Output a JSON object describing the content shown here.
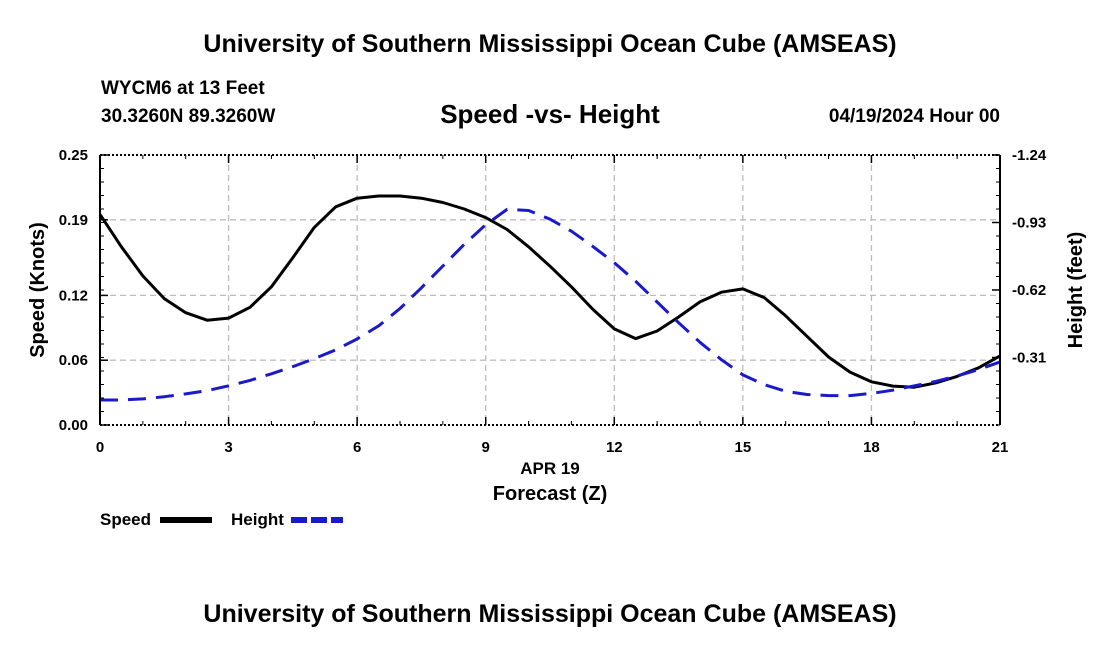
{
  "header": {
    "title": "University of Southern Mississippi Ocean Cube (AMSEAS)",
    "station": "WYCM6 at 13 Feet",
    "coords": "30.3260N  89.3260W",
    "subtitle": "Speed -vs- Height",
    "datetime": "04/19/2024 Hour 00"
  },
  "footer": {
    "title": "University of Southern Mississippi Ocean Cube (AMSEAS)"
  },
  "chart_data": {
    "type": "line",
    "title": "Speed -vs- Height",
    "xlabel": "Forecast (Z)",
    "xsublabel": "APR 19",
    "ylabel": "Speed (Knots)",
    "y2label": "Height (feet)",
    "xlim": [
      0,
      21
    ],
    "ylim": [
      0.0,
      0.25
    ],
    "y2lim": [
      -1.24,
      0.0
    ],
    "x_ticks": [
      0,
      3,
      6,
      9,
      12,
      15,
      18,
      21
    ],
    "x_tick_labels": [
      "0",
      "3",
      "6",
      "9",
      "12",
      "15",
      "18",
      "21"
    ],
    "y_ticks": [
      0.0,
      0.06,
      0.12,
      0.19,
      0.25
    ],
    "y_tick_labels": [
      "0.00",
      "0.06",
      "0.12",
      "0.19",
      "0.25"
    ],
    "y2_ticks": [
      -0.31,
      -0.62,
      -0.93,
      -1.24
    ],
    "y2_tick_labels": [
      "-0.31",
      "-0.62",
      "-0.93",
      "-1.24"
    ],
    "grid": true,
    "series": [
      {
        "name": "Speed",
        "axis": "left",
        "color": "#000000",
        "dash": "solid",
        "x": [
          0,
          0.5,
          1,
          1.5,
          2,
          2.5,
          3,
          3.5,
          4,
          4.5,
          5,
          5.5,
          6,
          6.5,
          7,
          7.5,
          8,
          8.5,
          9,
          9.5,
          10,
          10.5,
          11,
          11.5,
          12,
          12.5,
          13,
          13.5,
          14,
          14.5,
          15,
          15.5,
          16,
          16.5,
          17,
          17.5,
          18,
          18.5,
          19,
          19.5,
          20,
          20.5,
          21
        ],
        "values": [
          0.195,
          0.165,
          0.138,
          0.117,
          0.104,
          0.097,
          0.099,
          0.109,
          0.128,
          0.155,
          0.183,
          0.202,
          0.21,
          0.212,
          0.212,
          0.21,
          0.206,
          0.2,
          0.192,
          0.181,
          0.165,
          0.147,
          0.128,
          0.107,
          0.089,
          0.08,
          0.087,
          0.1,
          0.114,
          0.123,
          0.126,
          0.118,
          0.101,
          0.082,
          0.063,
          0.049,
          0.04,
          0.036,
          0.035,
          0.039,
          0.045,
          0.053,
          0.064
        ]
      },
      {
        "name": "Height",
        "axis": "right",
        "color": "#1a1acc",
        "dash": "dashed",
        "x": [
          0,
          0.5,
          1,
          1.5,
          2,
          2.5,
          3,
          3.5,
          4,
          4.5,
          5,
          5.5,
          6,
          6.5,
          7,
          7.5,
          8,
          8.5,
          9,
          9.5,
          10,
          10.5,
          11,
          11.5,
          12,
          12.5,
          13,
          13.5,
          14,
          14.5,
          15,
          15.5,
          16,
          16.5,
          17,
          17.5,
          18,
          18.5,
          19,
          19.5,
          20,
          20.5,
          21
        ],
        "values": [
          -0.115,
          -0.115,
          -0.12,
          -0.13,
          -0.143,
          -0.158,
          -0.18,
          -0.205,
          -0.235,
          -0.268,
          -0.305,
          -0.345,
          -0.395,
          -0.455,
          -0.535,
          -0.63,
          -0.73,
          -0.83,
          -0.92,
          -0.99,
          -0.985,
          -0.945,
          -0.89,
          -0.82,
          -0.745,
          -0.66,
          -0.565,
          -0.47,
          -0.38,
          -0.3,
          -0.23,
          -0.185,
          -0.155,
          -0.14,
          -0.135,
          -0.135,
          -0.145,
          -0.16,
          -0.18,
          -0.2,
          -0.225,
          -0.255,
          -0.29
        ]
      }
    ],
    "legend": [
      {
        "label": "Speed",
        "color": "#000000",
        "dash": "solid"
      },
      {
        "label": "Height",
        "color": "#1a1acc",
        "dash": "dashed"
      }
    ],
    "legend_position": "bottom-left"
  }
}
